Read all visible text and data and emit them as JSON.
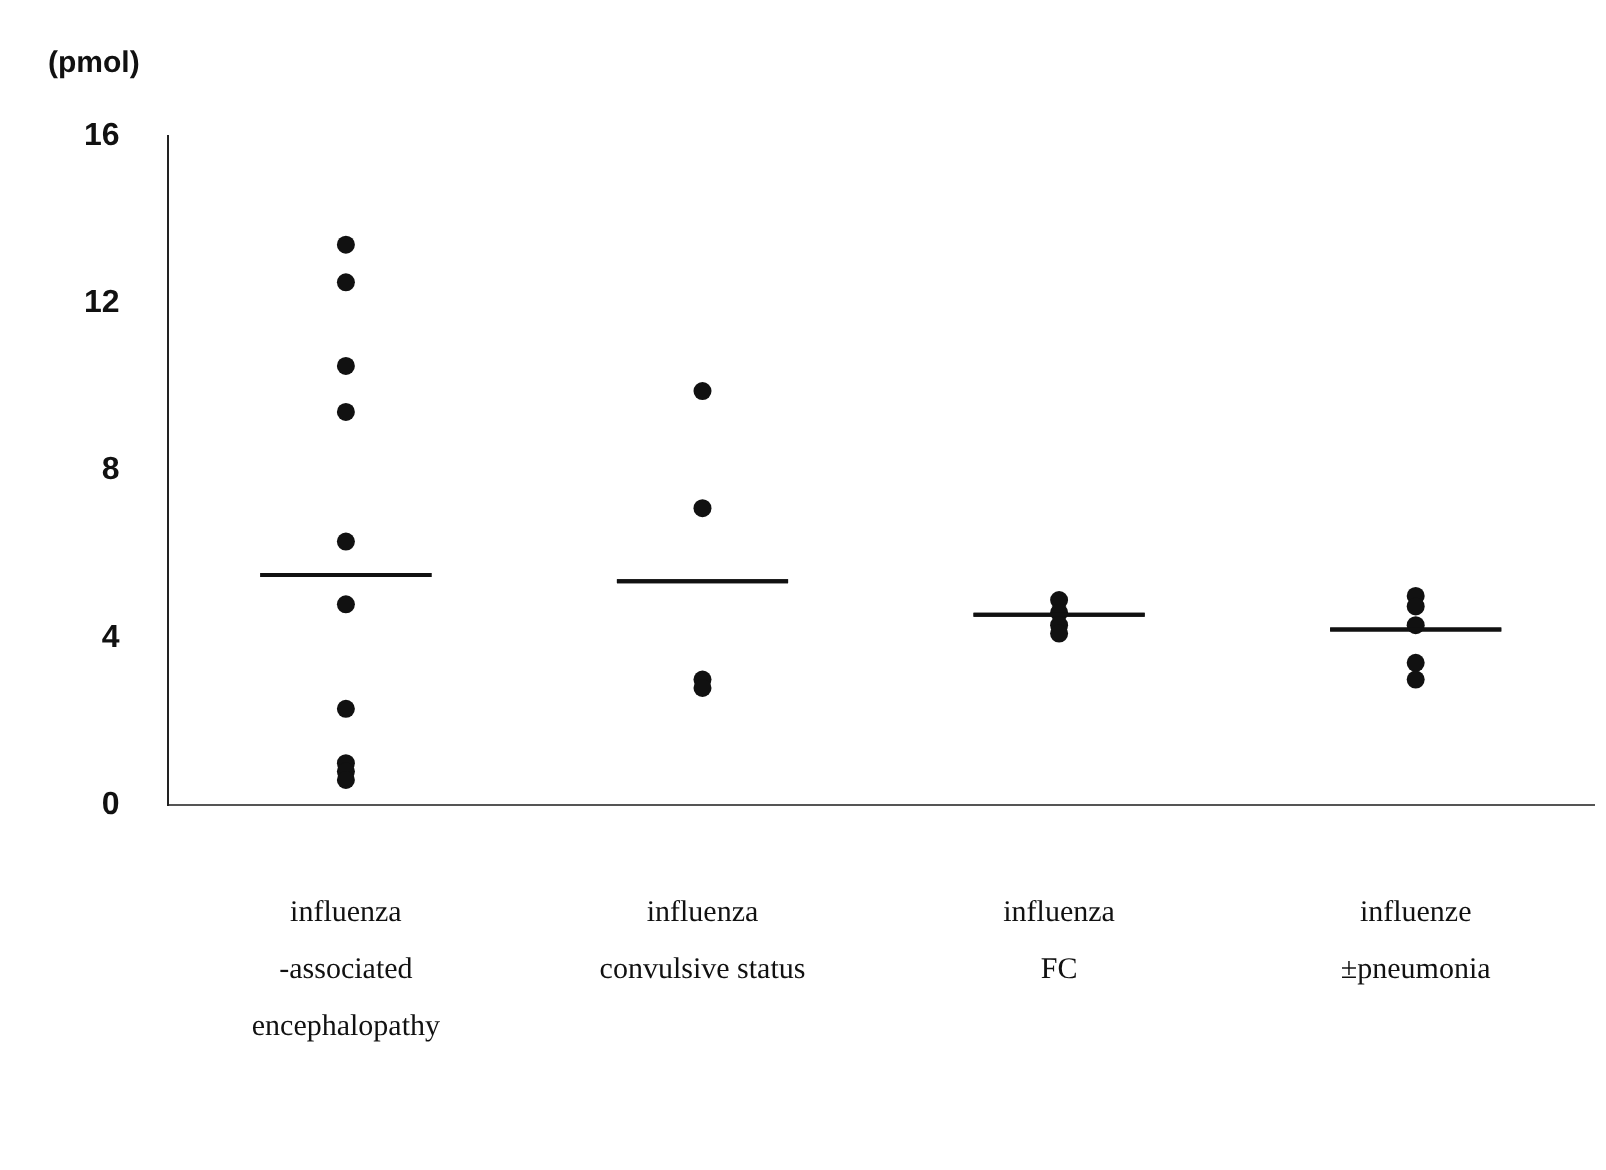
{
  "chart_data": {
    "type": "scatter",
    "ylabel": "(pmol)",
    "categories": [
      "influenza\n-associated\nencephalopathy",
      "influenza\nconvulsive status",
      "influenza\nFC",
      "influenze\n±pneumonia"
    ],
    "series": [
      {
        "color": "#111111",
        "marker": "circle",
        "x": [
          "influenza\n-associated\nencephalopathy",
          "influenza\n-associated\nencephalopathy",
          "influenza\n-associated\nencephalopathy",
          "influenza\n-associated\nencephalopathy",
          "influenza\n-associated\nencephalopathy",
          "influenza\n-associated\nencephalopathy",
          "influenza\n-associated\nencephalopathy",
          "influenza\n-associated\nencephalopathy",
          "influenza\n-associated\nencephalopathy",
          "influenza\n-associated\nencephalopathy",
          "influenza\nconvulsive status",
          "influenza\nconvulsive status",
          "influenza\nconvulsive status",
          "influenza\nconvulsive status",
          "influenza\nFC",
          "influenza\nFC",
          "influenza\nFC",
          "influenza\nFC",
          "influenze\n±pneumonia",
          "influenze\n±pneumonia",
          "influenze\n±pneumonia",
          "influenze\n±pneumonia",
          "influenze\n±pneumonia"
        ],
        "values": [
          13.4,
          12.5,
          10.5,
          9.4,
          6.3,
          4.8,
          2.3,
          1.0,
          0.8,
          0.6,
          9.9,
          7.1,
          3.0,
          2.8,
          4.9,
          4.6,
          4.3,
          4.1,
          5.0,
          4.75,
          4.3,
          3.4,
          3.0
        ]
      },
      {
        "type": "box",
        "color": "#111111",
        "boxes": [
          {
            "low": 5.5,
            "q1": 5.5,
            "median": 5.5,
            "q3": 5.5,
            "high": 5.5
          },
          {
            "low": 5.35,
            "q1": 5.35,
            "median": 5.35,
            "q3": 5.35,
            "high": 5.35
          },
          {
            "low": 4.55,
            "q1": 4.55,
            "median": 4.55,
            "q3": 4.55,
            "high": 4.55
          },
          {
            "low": 4.2,
            "q1": 4.2,
            "median": 4.2,
            "q3": 4.2,
            "high": 4.2
          }
        ]
      }
    ],
    "ylim": [
      0,
      16
    ],
    "yticks": [
      0,
      4,
      8,
      12,
      16
    ],
    "grid": false,
    "legend": false
  }
}
